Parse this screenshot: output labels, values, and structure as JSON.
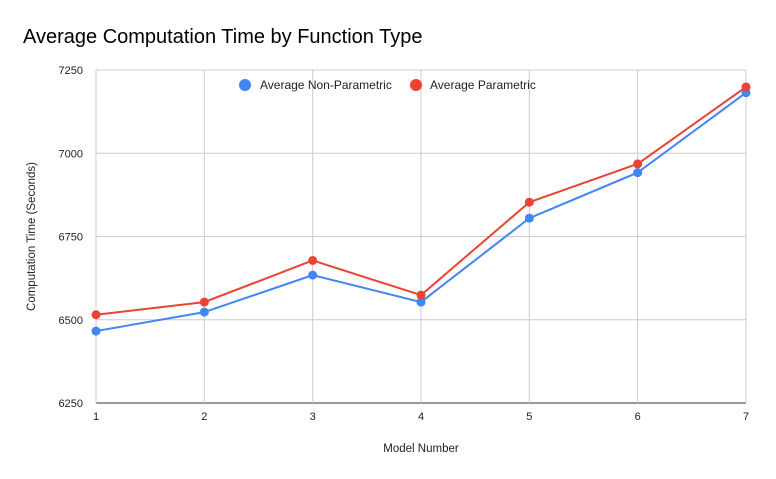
{
  "chart_data": {
    "type": "line",
    "title": "Average Computation Time by Function Type",
    "xlabel": "Model Number",
    "ylabel": "Computation Time (Seconds)",
    "x": [
      1,
      2,
      3,
      4,
      5,
      6,
      7
    ],
    "x_tick_labels": [
      "1",
      "2",
      "3",
      "4",
      "5",
      "6",
      "7"
    ],
    "xlim": [
      1,
      7
    ],
    "ylim": [
      6250,
      7250
    ],
    "y_ticks": [
      6250,
      6500,
      6750,
      7000,
      7250
    ],
    "y_tick_labels": [
      "6250",
      "6500",
      "6750",
      "7000",
      "7250"
    ],
    "grid": true,
    "legend_position": "top",
    "series": [
      {
        "name": "Average Non-Parametric",
        "color": "#4285f4",
        "values": [
          6466,
          6523,
          6634,
          6553,
          6805,
          6942,
          7182
        ]
      },
      {
        "name": "Average Parametric",
        "color": "#ea4335",
        "values": [
          6515,
          6553,
          6678,
          6574,
          6853,
          6968,
          7199
        ]
      }
    ]
  }
}
